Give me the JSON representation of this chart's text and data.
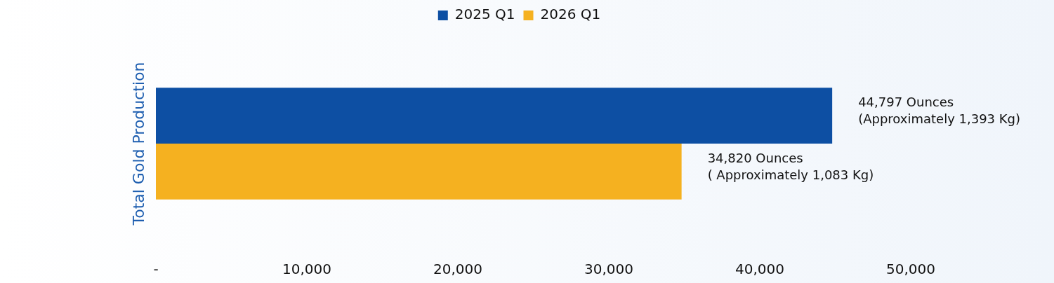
{
  "chart_data": {
    "type": "bar",
    "orientation": "horizontal",
    "ylabel": "Total Gold Production",
    "categories": [
      null
    ],
    "series": [
      {
        "name": "2025 Q1",
        "color": "#0d4fa3",
        "values": [
          44797
        ],
        "value_labels": [
          "44,797 Ounces\n(Approximately 1,393 Kg)"
        ]
      },
      {
        "name": "2026 Q1",
        "color": "#f5b120",
        "values": [
          34820
        ],
        "value_labels": [
          "34,820 Ounces\n( Approximately 1,083 Kg)"
        ]
      }
    ],
    "xlim": [
      0,
      50000
    ],
    "xticks": [
      {
        "value": 0,
        "label": "-"
      },
      {
        "value": 10000,
        "label": "10,000"
      },
      {
        "value": 20000,
        "label": "20,000"
      },
      {
        "value": 30000,
        "label": "30,000"
      },
      {
        "value": 40000,
        "label": "40,000"
      },
      {
        "value": 50000,
        "label": "50,000"
      }
    ],
    "grid": false,
    "legend": "top"
  }
}
